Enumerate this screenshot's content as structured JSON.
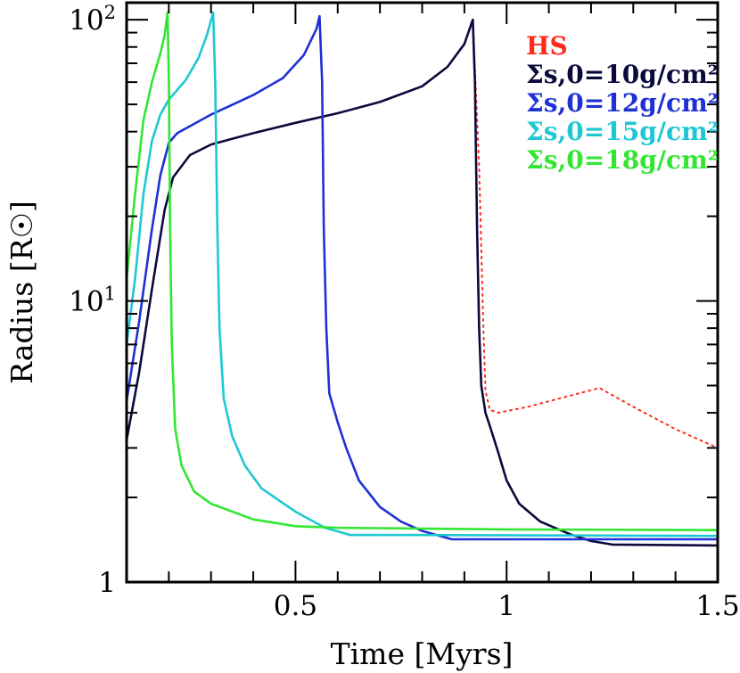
{
  "chart_data": {
    "type": "line",
    "title": "",
    "xlabel": "Time [Myrs]",
    "ylabel": "Radius [R☉]",
    "xlim": [
      0.1,
      1.5
    ],
    "ylim": [
      1,
      115
    ],
    "yscale": "log",
    "grid": false,
    "legend_position": "top-right",
    "x_ticks": [
      {
        "value": 0.5,
        "label": "0.5"
      },
      {
        "value": 1,
        "label": "1"
      },
      {
        "value": 1.5,
        "label": "1.5"
      }
    ],
    "y_ticks": [
      {
        "value": 1,
        "label": "1",
        "exp": ""
      },
      {
        "value": 10,
        "label": "10",
        "exp": "1"
      },
      {
        "value": 100,
        "label": "10",
        "exp": "2"
      }
    ],
    "series": [
      {
        "name": "HS",
        "color": "#ff2a1a",
        "dashed": true,
        "points": [
          [
            0.92,
            100
          ],
          [
            0.935,
            30
          ],
          [
            0.945,
            8
          ],
          [
            0.95,
            4.8
          ],
          [
            0.96,
            4.1
          ],
          [
            0.98,
            4.0
          ],
          [
            1.05,
            4.2
          ],
          [
            1.15,
            4.6
          ],
          [
            1.22,
            4.9
          ],
          [
            1.3,
            4.2
          ],
          [
            1.4,
            3.5
          ],
          [
            1.5,
            3.0
          ]
        ]
      },
      {
        "name": "Σs,0=10g/cm²",
        "color": "#0a0a3c",
        "dashed": false,
        "points": [
          [
            0.1,
            3.2
          ],
          [
            0.13,
            5.6
          ],
          [
            0.16,
            11
          ],
          [
            0.19,
            21
          ],
          [
            0.21,
            27.5
          ],
          [
            0.25,
            33
          ],
          [
            0.3,
            36
          ],
          [
            0.4,
            39.5
          ],
          [
            0.5,
            43
          ],
          [
            0.6,
            46.5
          ],
          [
            0.7,
            51
          ],
          [
            0.8,
            58
          ],
          [
            0.86,
            68
          ],
          [
            0.9,
            82
          ],
          [
            0.92,
            100
          ],
          [
            0.925,
            60
          ],
          [
            0.93,
            18
          ],
          [
            0.935,
            8
          ],
          [
            0.94,
            5
          ],
          [
            0.95,
            4
          ],
          [
            0.96,
            3.6
          ],
          [
            0.98,
            2.9
          ],
          [
            1.0,
            2.3
          ],
          [
            1.03,
            1.9
          ],
          [
            1.08,
            1.64
          ],
          [
            1.15,
            1.48
          ],
          [
            1.2,
            1.4
          ],
          [
            1.25,
            1.36
          ],
          [
            1.5,
            1.35
          ]
        ]
      },
      {
        "name": "Σs,0=12g/cm²",
        "color": "#1f30d6",
        "dashed": false,
        "points": [
          [
            0.1,
            4.4
          ],
          [
            0.13,
            8.5
          ],
          [
            0.16,
            18
          ],
          [
            0.18,
            28
          ],
          [
            0.2,
            36.5
          ],
          [
            0.22,
            39.5
          ],
          [
            0.3,
            46
          ],
          [
            0.4,
            54
          ],
          [
            0.47,
            62
          ],
          [
            0.52,
            75
          ],
          [
            0.55,
            93
          ],
          [
            0.557,
            103
          ],
          [
            0.563,
            60
          ],
          [
            0.567,
            18
          ],
          [
            0.573,
            8
          ],
          [
            0.58,
            4.7
          ],
          [
            0.6,
            3.7
          ],
          [
            0.62,
            3.0
          ],
          [
            0.65,
            2.3
          ],
          [
            0.7,
            1.85
          ],
          [
            0.75,
            1.64
          ],
          [
            0.8,
            1.52
          ],
          [
            0.87,
            1.42
          ],
          [
            1.0,
            1.42
          ],
          [
            1.5,
            1.42
          ]
        ]
      },
      {
        "name": "Σs,0=15g/cm²",
        "color": "#1ec8d2",
        "dashed": false,
        "points": [
          [
            0.1,
            7
          ],
          [
            0.12,
            12
          ],
          [
            0.14,
            24
          ],
          [
            0.16,
            37
          ],
          [
            0.18,
            46
          ],
          [
            0.2,
            52
          ],
          [
            0.24,
            61
          ],
          [
            0.27,
            73
          ],
          [
            0.29,
            88
          ],
          [
            0.305,
            106
          ],
          [
            0.31,
            60
          ],
          [
            0.315,
            18
          ],
          [
            0.32,
            8
          ],
          [
            0.33,
            4.5
          ],
          [
            0.35,
            3.3
          ],
          [
            0.38,
            2.6
          ],
          [
            0.42,
            2.15
          ],
          [
            0.5,
            1.78
          ],
          [
            0.57,
            1.56
          ],
          [
            0.63,
            1.47
          ],
          [
            0.8,
            1.47
          ],
          [
            1.5,
            1.46
          ]
        ]
      },
      {
        "name": "Σs,0=18g/cm²",
        "color": "#32e632",
        "dashed": false,
        "points": [
          [
            0.1,
            12
          ],
          [
            0.12,
            24
          ],
          [
            0.14,
            44
          ],
          [
            0.16,
            60
          ],
          [
            0.18,
            76
          ],
          [
            0.19,
            88
          ],
          [
            0.197,
            106
          ],
          [
            0.2,
            60
          ],
          [
            0.203,
            18
          ],
          [
            0.207,
            7
          ],
          [
            0.215,
            3.5
          ],
          [
            0.23,
            2.6
          ],
          [
            0.26,
            2.1
          ],
          [
            0.3,
            1.9
          ],
          [
            0.4,
            1.67
          ],
          [
            0.5,
            1.58
          ],
          [
            0.6,
            1.56
          ],
          [
            1.0,
            1.54
          ],
          [
            1.5,
            1.53
          ]
        ]
      }
    ]
  }
}
